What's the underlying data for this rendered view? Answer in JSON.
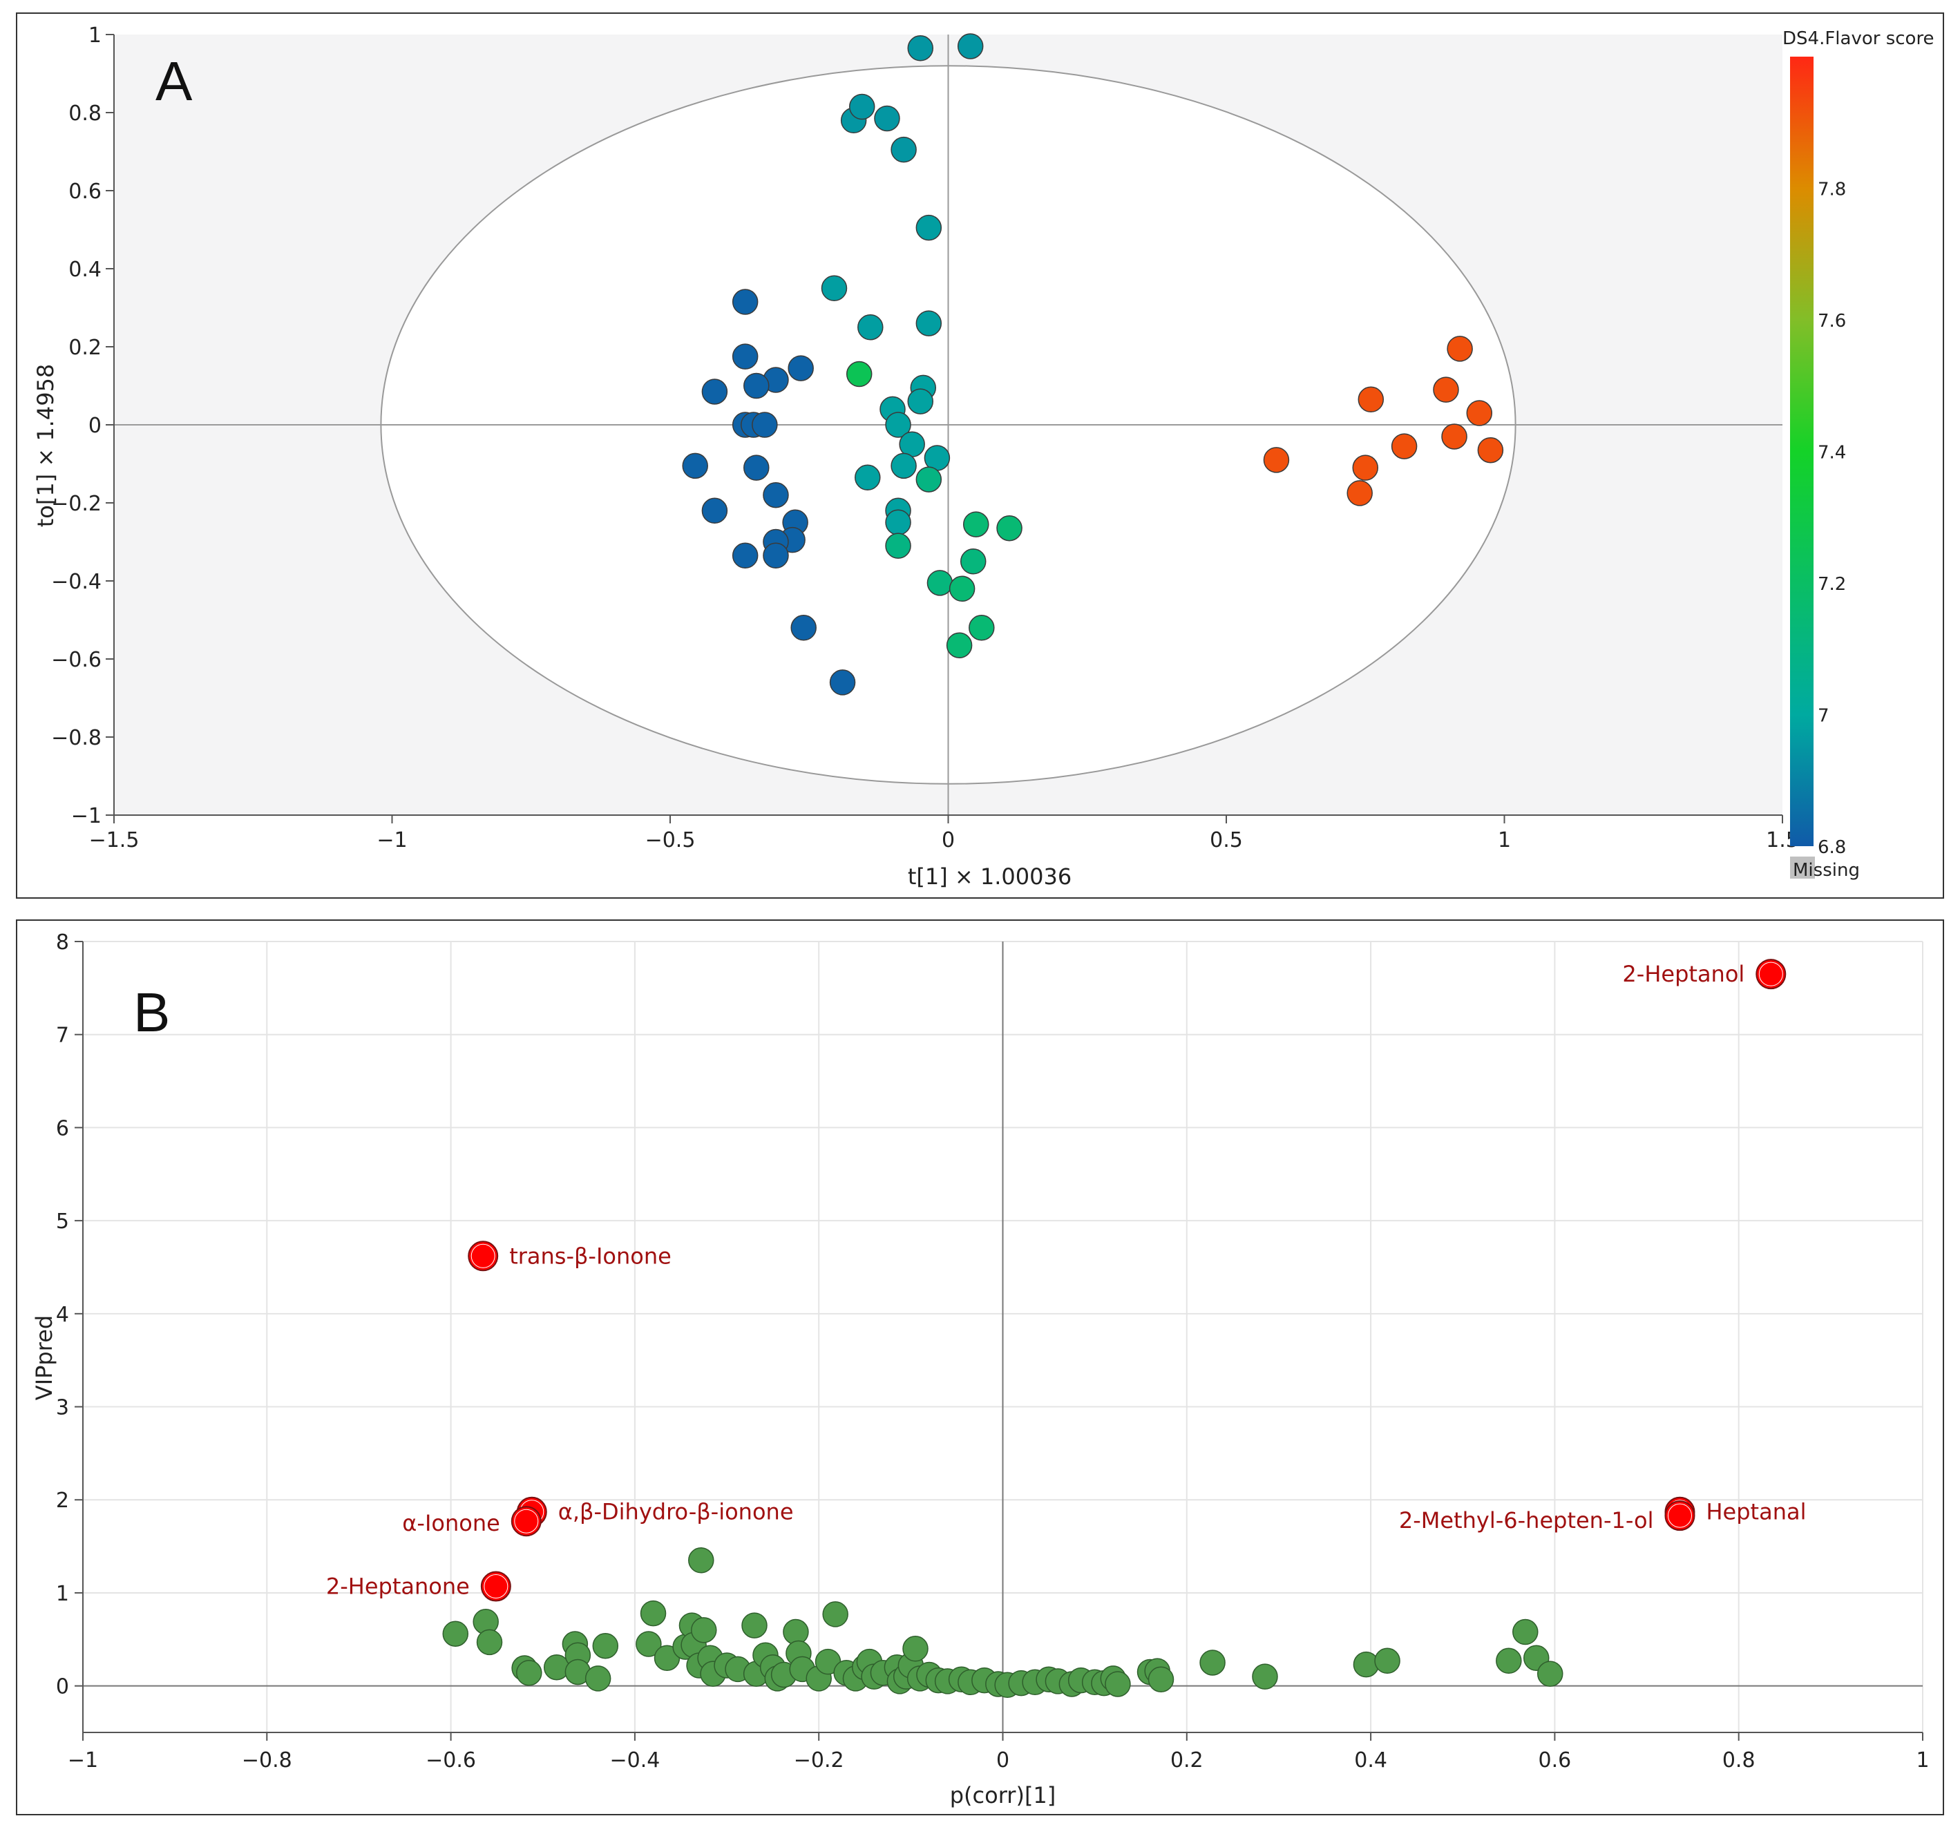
{
  "chart_data": [
    {
      "type": "scatter",
      "panel_letter": "A",
      "xlabel": "t[1] × 1.00036",
      "ylabel": "to[1] × 1.4958",
      "xlim": [
        -1.5,
        1.5
      ],
      "ylim": [
        -1,
        1
      ],
      "x_ticks": [
        "−1.5",
        "−1",
        "−0.5",
        "0",
        "0.5",
        "1",
        "1.5"
      ],
      "y_ticks": [
        "1",
        "0.8",
        "0.6",
        "0.4",
        "0.2",
        "0",
        "−0.2",
        "−0.4",
        "−0.6",
        "−0.8",
        "−1"
      ],
      "ellipse": {
        "rx": 1.02,
        "ry": 0.92
      },
      "colorbar": {
        "title": "DS4.Flavor score",
        "ticks": [
          "7.8",
          "7.6",
          "7.4",
          "7.2",
          "7",
          "6.8"
        ],
        "range": [
          6.8,
          8.0
        ],
        "missing_label": "Missing"
      },
      "points": [
        {
          "x": -0.05,
          "y": 0.965,
          "c": 6.95
        },
        {
          "x": 0.04,
          "y": 0.97,
          "c": 6.95
        },
        {
          "x": -0.17,
          "y": 0.78,
          "c": 6.95
        },
        {
          "x": -0.155,
          "y": 0.815,
          "c": 6.95
        },
        {
          "x": -0.11,
          "y": 0.785,
          "c": 6.95
        },
        {
          "x": -0.08,
          "y": 0.705,
          "c": 6.95
        },
        {
          "x": -0.035,
          "y": 0.505,
          "c": 6.97
        },
        {
          "x": -0.205,
          "y": 0.35,
          "c": 6.97
        },
        {
          "x": -0.14,
          "y": 0.25,
          "c": 6.97
        },
        {
          "x": -0.035,
          "y": 0.26,
          "c": 6.97
        },
        {
          "x": -0.16,
          "y": 0.13,
          "c": 7.25
        },
        {
          "x": -0.045,
          "y": 0.095,
          "c": 6.98
        },
        {
          "x": -0.05,
          "y": 0.06,
          "c": 6.98
        },
        {
          "x": -0.1,
          "y": 0.04,
          "c": 6.98
        },
        {
          "x": -0.09,
          "y": 0.0,
          "c": 6.98
        },
        {
          "x": -0.065,
          "y": -0.05,
          "c": 6.98
        },
        {
          "x": -0.02,
          "y": -0.085,
          "c": 6.98
        },
        {
          "x": -0.08,
          "y": -0.105,
          "c": 6.98
        },
        {
          "x": -0.035,
          "y": -0.14,
          "c": 7.1
        },
        {
          "x": -0.145,
          "y": -0.135,
          "c": 6.98
        },
        {
          "x": -0.09,
          "y": -0.22,
          "c": 6.98
        },
        {
          "x": -0.09,
          "y": -0.25,
          "c": 6.98
        },
        {
          "x": -0.09,
          "y": -0.31,
          "c": 7.1
        },
        {
          "x": 0.05,
          "y": -0.255,
          "c": 7.15
        },
        {
          "x": 0.11,
          "y": -0.265,
          "c": 7.15
        },
        {
          "x": 0.045,
          "y": -0.35,
          "c": 7.12
        },
        {
          "x": -0.015,
          "y": -0.405,
          "c": 7.12
        },
        {
          "x": 0.025,
          "y": -0.42,
          "c": 7.15
        },
        {
          "x": 0.06,
          "y": -0.52,
          "c": 7.15
        },
        {
          "x": 0.02,
          "y": -0.565,
          "c": 7.15
        },
        {
          "x": -0.365,
          "y": 0.315,
          "c": 6.82
        },
        {
          "x": -0.365,
          "y": 0.175,
          "c": 6.82
        },
        {
          "x": -0.265,
          "y": 0.145,
          "c": 6.82
        },
        {
          "x": -0.31,
          "y": 0.115,
          "c": 6.82
        },
        {
          "x": -0.345,
          "y": 0.1,
          "c": 6.82
        },
        {
          "x": -0.42,
          "y": 0.085,
          "c": 6.82
        },
        {
          "x": -0.365,
          "y": 0.0,
          "c": 6.82
        },
        {
          "x": -0.35,
          "y": 0.0,
          "c": 6.82
        },
        {
          "x": -0.33,
          "y": 0.0,
          "c": 6.82
        },
        {
          "x": -0.455,
          "y": -0.105,
          "c": 6.82
        },
        {
          "x": -0.345,
          "y": -0.11,
          "c": 6.82
        },
        {
          "x": -0.31,
          "y": -0.18,
          "c": 6.82
        },
        {
          "x": -0.42,
          "y": -0.22,
          "c": 6.82
        },
        {
          "x": -0.275,
          "y": -0.25,
          "c": 6.82
        },
        {
          "x": -0.28,
          "y": -0.295,
          "c": 6.82
        },
        {
          "x": -0.31,
          "y": -0.3,
          "c": 6.82
        },
        {
          "x": -0.365,
          "y": -0.335,
          "c": 6.82
        },
        {
          "x": -0.31,
          "y": -0.335,
          "c": 6.82
        },
        {
          "x": -0.26,
          "y": -0.52,
          "c": 6.82
        },
        {
          "x": -0.19,
          "y": -0.66,
          "c": 6.82
        },
        {
          "x": 0.59,
          "y": -0.09,
          "c": 7.92
        },
        {
          "x": 0.76,
          "y": 0.065,
          "c": 7.92
        },
        {
          "x": 0.75,
          "y": -0.11,
          "c": 7.92
        },
        {
          "x": 0.74,
          "y": -0.175,
          "c": 7.92
        },
        {
          "x": 0.82,
          "y": -0.055,
          "c": 7.92
        },
        {
          "x": 0.895,
          "y": 0.09,
          "c": 7.92
        },
        {
          "x": 0.92,
          "y": 0.195,
          "c": 7.92
        },
        {
          "x": 0.91,
          "y": -0.03,
          "c": 7.92
        },
        {
          "x": 0.955,
          "y": 0.03,
          "c": 7.92
        },
        {
          "x": 0.975,
          "y": -0.065,
          "c": 7.92
        }
      ]
    },
    {
      "type": "scatter",
      "panel_letter": "B",
      "xlabel": "p(corr)[1]",
      "ylabel": "VIPpred",
      "xlim": [
        -1,
        1
      ],
      "ylim": [
        -0.5,
        8
      ],
      "x_ticks": [
        "−1",
        "−0.8",
        "−0.6",
        "−0.4",
        "−0.2",
        "0",
        "0.2",
        "0.4",
        "0.6",
        "0.8",
        "1"
      ],
      "y_ticks": [
        "8",
        "7",
        "6",
        "5",
        "4",
        "3",
        "2",
        "1",
        "0"
      ],
      "highlighted": [
        {
          "x": 0.835,
          "y": 7.65,
          "label": "2-Heptanol",
          "side": "left"
        },
        {
          "x": -0.565,
          "y": 4.62,
          "label": "trans-β-Ionone",
          "side": "right"
        },
        {
          "x": -0.512,
          "y": 1.87,
          "label": "α,β-Dihydro-β-ionone",
          "side": "right"
        },
        {
          "x": -0.518,
          "y": 1.77,
          "label": "α-Ionone",
          "side": "left"
        },
        {
          "x": -0.551,
          "y": 1.07,
          "label": "2-Heptanone",
          "side": "left"
        },
        {
          "x": 0.736,
          "y": 1.87,
          "label": "Heptanal",
          "side": "right"
        },
        {
          "x": 0.736,
          "y": 1.83,
          "label": "2-Methyl-6-hepten-1-ol",
          "side": "left"
        }
      ],
      "points": [
        [
          -0.595,
          0.56
        ],
        [
          -0.562,
          0.69
        ],
        [
          -0.558,
          0.47
        ],
        [
          -0.52,
          0.19
        ],
        [
          -0.515,
          0.14
        ],
        [
          -0.485,
          0.2
        ],
        [
          -0.465,
          0.45
        ],
        [
          -0.462,
          0.33
        ],
        [
          -0.462,
          0.15
        ],
        [
          -0.44,
          0.08
        ],
        [
          -0.432,
          0.43
        ],
        [
          -0.38,
          0.78
        ],
        [
          -0.385,
          0.45
        ],
        [
          -0.365,
          0.3
        ],
        [
          -0.345,
          0.42
        ],
        [
          -0.338,
          0.65
        ],
        [
          -0.336,
          0.44
        ],
        [
          -0.33,
          0.22
        ],
        [
          -0.328,
          1.35
        ],
        [
          -0.325,
          0.6
        ],
        [
          -0.318,
          0.3
        ],
        [
          -0.315,
          0.13
        ],
        [
          -0.3,
          0.22
        ],
        [
          -0.288,
          0.18
        ],
        [
          -0.27,
          0.65
        ],
        [
          -0.268,
          0.13
        ],
        [
          -0.258,
          0.33
        ],
        [
          -0.25,
          0.2
        ],
        [
          -0.245,
          0.08
        ],
        [
          -0.238,
          0.12
        ],
        [
          -0.225,
          0.58
        ],
        [
          -0.222,
          0.35
        ],
        [
          -0.218,
          0.18
        ],
        [
          -0.2,
          0.08
        ],
        [
          -0.19,
          0.26
        ],
        [
          -0.182,
          0.77
        ],
        [
          -0.17,
          0.14
        ],
        [
          -0.16,
          0.08
        ],
        [
          -0.15,
          0.2
        ],
        [
          -0.145,
          0.26
        ],
        [
          -0.14,
          0.1
        ],
        [
          -0.13,
          0.14
        ],
        [
          -0.115,
          0.2
        ],
        [
          -0.112,
          0.05
        ],
        [
          -0.105,
          0.1
        ],
        [
          -0.1,
          0.22
        ],
        [
          -0.095,
          0.4
        ],
        [
          -0.09,
          0.08
        ],
        [
          -0.08,
          0.12
        ],
        [
          -0.07,
          0.06
        ],
        [
          -0.06,
          0.05
        ],
        [
          -0.045,
          0.07
        ],
        [
          -0.035,
          0.04
        ],
        [
          -0.02,
          0.06
        ],
        [
          -0.005,
          0.02
        ],
        [
          0.005,
          0.01
        ],
        [
          0.02,
          0.03
        ],
        [
          0.035,
          0.04
        ],
        [
          0.05,
          0.07
        ],
        [
          0.06,
          0.05
        ],
        [
          0.075,
          0.02
        ],
        [
          0.085,
          0.06
        ],
        [
          0.1,
          0.04
        ],
        [
          0.11,
          0.03
        ],
        [
          0.12,
          0.08
        ],
        [
          0.125,
          0.02
        ],
        [
          0.16,
          0.15
        ],
        [
          0.168,
          0.16
        ],
        [
          0.172,
          0.07
        ],
        [
          0.228,
          0.25
        ],
        [
          0.285,
          0.1
        ],
        [
          0.395,
          0.23
        ],
        [
          0.418,
          0.27
        ],
        [
          0.55,
          0.27
        ],
        [
          0.568,
          0.58
        ],
        [
          0.58,
          0.3
        ],
        [
          0.595,
          0.13
        ]
      ]
    }
  ]
}
